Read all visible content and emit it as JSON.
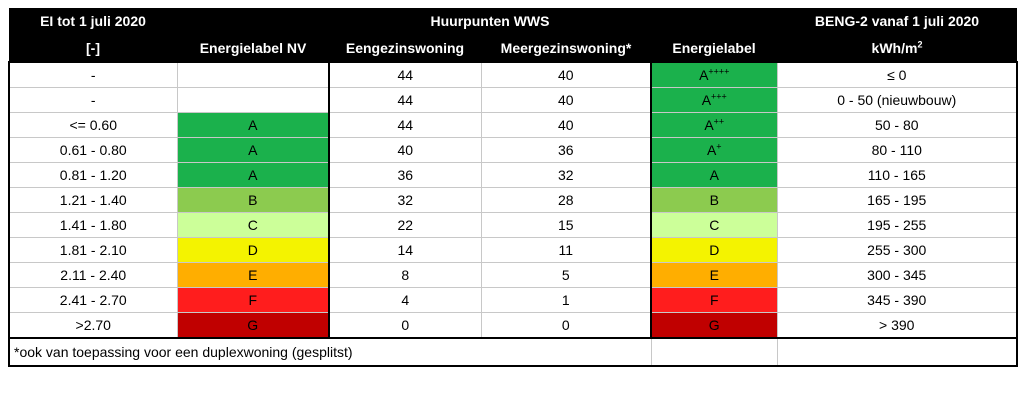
{
  "headers": {
    "ei_line1": "EI tot 1 juli 2020",
    "ei_line2": "[-]",
    "energielabel_nv": "Energielabel NV",
    "huurpunten": "Huurpunten  WWS",
    "eengezinswoning": "Eengezinswoning",
    "meergezinswoning": "Meergezinswoning*",
    "energielabel": "Energielabel",
    "beng_line1": "BENG-2  vanaf 1 juli 2020",
    "beng_unit": "kWh/m",
    "beng_unit_sup": "2"
  },
  "rows": [
    {
      "ei": "-",
      "nv": "",
      "nv_color": "#ffffff",
      "een": "44",
      "meer": "40",
      "label": "A",
      "label_sup": "++++",
      "label_color": "#1bb14c",
      "beng": "≤ 0"
    },
    {
      "ei": "-",
      "nv": "",
      "nv_color": "#ffffff",
      "een": "44",
      "meer": "40",
      "label": "A",
      "label_sup": "+++",
      "label_color": "#1bb14c",
      "beng": "0 - 50 (nieuwbouw)"
    },
    {
      "ei": "<= 0.60",
      "nv": "A",
      "nv_color": "#1bb14c",
      "een": "44",
      "meer": "40",
      "label": "A",
      "label_sup": "++",
      "label_color": "#1bb14c",
      "beng": "50 - 80"
    },
    {
      "ei": "0.61 - 0.80",
      "nv": "A",
      "nv_color": "#1bb14c",
      "een": "40",
      "meer": "36",
      "label": "A",
      "label_sup": "+",
      "label_color": "#1bb14c",
      "beng": "80 - 110"
    },
    {
      "ei": "0.81 - 1.20",
      "nv": "A",
      "nv_color": "#1bb14c",
      "een": "36",
      "meer": "32",
      "label": "A",
      "label_sup": "",
      "label_color": "#1bb14c",
      "beng": "110 - 165"
    },
    {
      "ei": "1.21 - 1.40",
      "nv": "B",
      "nv_color": "#8ccb4f",
      "een": "32",
      "meer": "28",
      "label": "B",
      "label_sup": "",
      "label_color": "#8ccb4f",
      "beng": "165 - 195"
    },
    {
      "ei": "1.41 - 1.80",
      "nv": "C",
      "nv_color": "#ccff99",
      "een": "22",
      "meer": "15",
      "label": "C",
      "label_sup": "",
      "label_color": "#ccff99",
      "beng": "195 - 255"
    },
    {
      "ei": "1.81 - 2.10",
      "nv": "D",
      "nv_color": "#f4f300",
      "een": "14",
      "meer": "11",
      "label": "D",
      "label_sup": "",
      "label_color": "#f4f300",
      "beng": "255 - 300"
    },
    {
      "ei": "2.11 - 2.40",
      "nv": "E",
      "nv_color": "#ffae00",
      "een": "8",
      "meer": "5",
      "label": "E",
      "label_sup": "",
      "label_color": "#ffae00",
      "beng": "300 - 345"
    },
    {
      "ei": "2.41 - 2.70",
      "nv": "F",
      "nv_color": "#ff1d1d",
      "een": "4",
      "meer": "1",
      "label": "F",
      "label_sup": "",
      "label_color": "#ff1d1d",
      "beng": "345 - 390"
    },
    {
      "ei": ">2.70",
      "nv": "G",
      "nv_color": "#c00000",
      "een": "0",
      "meer": "0",
      "label": "G",
      "label_sup": "",
      "label_color": "#c00000",
      "beng": "> 390"
    }
  ],
  "footnote": "*ook van toepassing voor een duplexwoning (gesplitst)"
}
